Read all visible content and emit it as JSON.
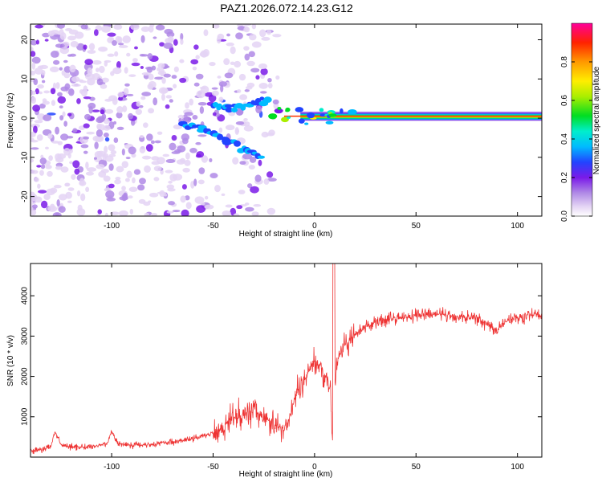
{
  "title": "PAZ1.2026.072.14.23.G12",
  "chart_data": [
    {
      "type": "heatmap",
      "title": "PAZ1.2026.072.14.23.G12",
      "xlabel": "Height of straight line (km)",
      "ylabel": "Frequency (Hz)",
      "xlim": [
        -140,
        112
      ],
      "ylim": [
        -25,
        24
      ],
      "xticks": [
        "-100",
        "-50",
        "0",
        "50",
        "100"
      ],
      "xtick_values": [
        -100,
        -50,
        0,
        50,
        100
      ],
      "yticks": [
        "-20",
        "-10",
        "0",
        "10",
        "20"
      ],
      "ytick_values": [
        -20,
        -10,
        0,
        10,
        20
      ],
      "colorbar": {
        "label": "Normalized spectral amplitude",
        "range": [
          0,
          1
        ],
        "ticks": [
          "0.0",
          "0.2",
          "0.4",
          "0.6",
          "0.8"
        ],
        "tick_values": [
          0.0,
          0.2,
          0.4,
          0.6,
          0.8
        ]
      },
      "features": [
        {
          "name": "noise-blobs",
          "x_range": [
            -140,
            -18
          ],
          "freq_range": [
            -25,
            24
          ],
          "amplitude": [
            0.05,
            0.3
          ]
        },
        {
          "name": "diagonal-arc-lower",
          "points": [
            [
              -65,
              -1.5
            ],
            [
              -55,
              -3
            ],
            [
              -45,
              -5
            ],
            [
              -35,
              -8
            ],
            [
              -25,
              -10
            ]
          ],
          "amplitude": 0.3
        },
        {
          "name": "diagonal-arc-upper",
          "points": [
            [
              -50,
              3.5
            ],
            [
              -40,
              2.5
            ],
            [
              -30,
              3.5
            ],
            [
              -22,
              5
            ]
          ],
          "amplitude": 0.3
        },
        {
          "name": "carrier-ridge",
          "x_range": [
            -15,
            112
          ],
          "freq": 0.5,
          "amplitude": 0.95
        }
      ]
    },
    {
      "type": "line",
      "xlabel": "Height of straight line (km)",
      "ylabel": "SNR (10 * v/v)",
      "xlim": [
        -140,
        112
      ],
      "ylim": [
        0,
        4800
      ],
      "xticks": [
        "-100",
        "-50",
        "0",
        "50",
        "100"
      ],
      "xtick_values": [
        -100,
        -50,
        0,
        50,
        100
      ],
      "yticks": [
        "1000",
        "2000",
        "3000",
        "4000"
      ],
      "ytick_values": [
        1000,
        2000,
        3000,
        4000
      ],
      "color": "#ee3333",
      "series": [
        {
          "name": "SNR",
          "x": [
            -140,
            -135,
            -130,
            -128,
            -125,
            -120,
            -110,
            -102,
            -100,
            -98,
            -95,
            -90,
            -80,
            -70,
            -60,
            -55,
            -50,
            -45,
            -40,
            -35,
            -30,
            -25,
            -20,
            -15,
            -12,
            -10,
            -8,
            -5,
            -2,
            0,
            3,
            6,
            8,
            9,
            10,
            11,
            12,
            15,
            20,
            25,
            30,
            35,
            40,
            50,
            60,
            70,
            80,
            85,
            90,
            95,
            100,
            105,
            112
          ],
          "values": [
            150,
            180,
            250,
            650,
            300,
            250,
            250,
            350,
            650,
            400,
            320,
            300,
            320,
            380,
            450,
            520,
            620,
            750,
            1000,
            1100,
            1150,
            1000,
            800,
            700,
            1000,
            1400,
            1700,
            1900,
            2200,
            2400,
            2200,
            2000,
            1500,
            250,
            1800,
            2300,
            2500,
            2800,
            3000,
            3200,
            3350,
            3400,
            3450,
            3500,
            3550,
            3500,
            3450,
            3300,
            3150,
            3400,
            3450,
            3500,
            3550
          ]
        }
      ]
    }
  ]
}
